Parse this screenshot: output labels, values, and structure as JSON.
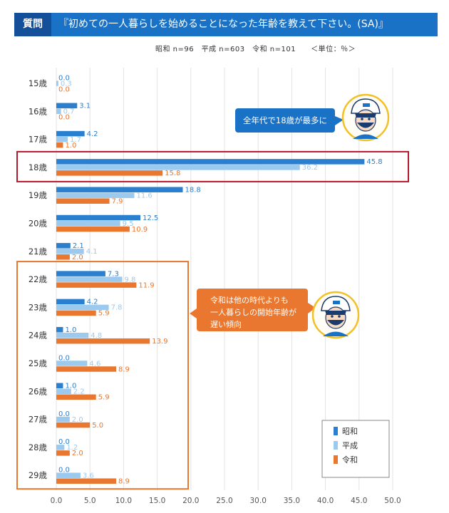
{
  "header": {
    "tag": "質問",
    "title": "『初めての一人暮らしを始めることになった年齢を教えて下さい。(SA)』"
  },
  "subtitle": "昭和 n=96　平成 n=603　令和 n=101　　＜単位：％＞",
  "colors": {
    "showa": "#2a7fcf",
    "heisei": "#9ccaee",
    "reiwa": "#e9772f",
    "highlight_red": "#b3192b",
    "highlight_orange": "#e9772f"
  },
  "callouts": {
    "top": "全年代で18歳が最多に",
    "bottom_line1": "令和は他の時代よりも",
    "bottom_line2": "一人暮らしの開始年齢が",
    "bottom_line3": "遅い傾向"
  },
  "chart_data": {
    "type": "bar",
    "orientation": "horizontal",
    "categories": [
      "15歳",
      "16歳",
      "17歳",
      "18歳",
      "19歳",
      "20歳",
      "21歳",
      "22歳",
      "23歳",
      "24歳",
      "25歳",
      "26歳",
      "27歳",
      "28歳",
      "29歳"
    ],
    "series": [
      {
        "name": "昭和",
        "values": [
          0.0,
          3.1,
          4.2,
          45.8,
          18.8,
          12.5,
          2.1,
          7.3,
          4.2,
          1.0,
          0.0,
          1.0,
          0.0,
          0.0,
          0.0
        ]
      },
      {
        "name": "平成",
        "values": [
          0.3,
          0.7,
          1.7,
          36.2,
          11.6,
          9.5,
          4.1,
          9.8,
          7.8,
          4.8,
          4.6,
          2.2,
          2.0,
          1.2,
          3.6
        ]
      },
      {
        "name": "令和",
        "values": [
          0.0,
          0.0,
          1.0,
          15.8,
          7.9,
          10.9,
          2.0,
          11.9,
          5.9,
          13.9,
          8.9,
          5.9,
          5.0,
          2.0,
          8.9
        ]
      }
    ],
    "xlim": [
      0,
      50
    ],
    "xticks": [
      "0.0",
      "5.0",
      "10.0",
      "15.0",
      "20.0",
      "25.0",
      "30.0",
      "35.0",
      "40.0",
      "45.0",
      "50.0"
    ],
    "legend": [
      "昭和",
      "平成",
      "令和"
    ],
    "legend_position": "bottom-right",
    "highlight_category": "18歳",
    "highlight_range": [
      "22歳",
      "29歳"
    ]
  }
}
